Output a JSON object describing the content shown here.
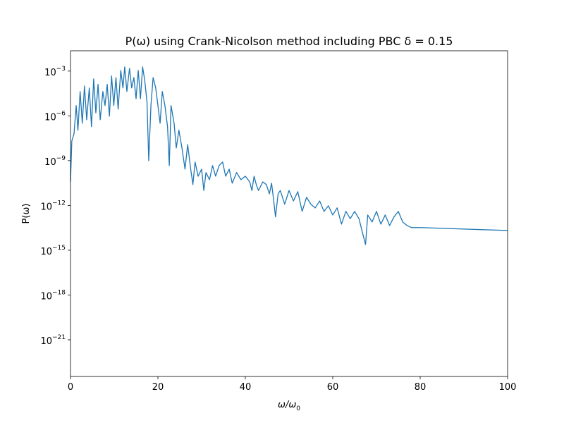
{
  "chart_data": {
    "type": "line",
    "title": "P(ω) using Crank-Nicolson method including PBC δ = 0.15",
    "x_label": {
      "text": "ω/ω",
      "subscript": "0"
    },
    "y_label": "P(ω)",
    "log_scale_y": true,
    "grid": false,
    "xlim": [
      0,
      100
    ],
    "ylim": [
      3.5e-24,
      0.023
    ],
    "xticks": [
      0,
      20,
      40,
      60,
      80,
      100
    ],
    "yticks": [
      {
        "value": 1e-21,
        "label": {
          "base": "10",
          "exponent": "−21"
        }
      },
      {
        "value": 1e-18,
        "label": {
          "base": "10",
          "exponent": "−18"
        }
      },
      {
        "value": 1e-15,
        "label": {
          "base": "10",
          "exponent": "−15"
        }
      },
      {
        "value": 1e-12,
        "label": {
          "base": "10",
          "exponent": "−12"
        }
      },
      {
        "value": 1e-09,
        "label": {
          "base": "10",
          "exponent": "−9"
        }
      },
      {
        "value": 1e-06,
        "label": {
          "base": "10",
          "exponent": "−6"
        }
      },
      {
        "value": 0.001,
        "label": {
          "base": "10",
          "exponent": "−3"
        }
      }
    ],
    "x": [
      0,
      0.3,
      0.8,
      1.3,
      1.7,
      2.2,
      2.7,
      3.2,
      3.7,
      4.3,
      4.8,
      5.3,
      5.8,
      6.3,
      6.8,
      7.4,
      7.9,
      8.4,
      8.9,
      9.4,
      9.9,
      10.4,
      10.9,
      11.5,
      12,
      12.4,
      12.9,
      13.5,
      14,
      14.5,
      15,
      15.5,
      16,
      16.5,
      17,
      17.5,
      17.9,
      18.4,
      18.9,
      19.5,
      20,
      20.5,
      21,
      21.6,
      22.2,
      22.6,
      23,
      23.7,
      24.2,
      24.8,
      25.5,
      26.2,
      26.8,
      27.5,
      28,
      28.5,
      29.2,
      30,
      30.5,
      31,
      31.8,
      32.5,
      33.2,
      34,
      34.8,
      35.5,
      36.3,
      37,
      38,
      39,
      40,
      41,
      41.5,
      42,
      42.5,
      43,
      44,
      44.8,
      45.5,
      46,
      46.5,
      46.9,
      47.5,
      48,
      49,
      50,
      51,
      52,
      53,
      54,
      55,
      56,
      57,
      58,
      59,
      60,
      61,
      62,
      63,
      64,
      65,
      66,
      66.8,
      67.5,
      68,
      69,
      70,
      71,
      72,
      73,
      74,
      75,
      76,
      77,
      78,
      80,
      100
    ],
    "series": [
      {
        "name": "P",
        "color": "#1f77b4",
        "values": [
          4e-11,
          2.1e-08,
          6.3e-08,
          4.9e-06,
          1.1e-07,
          4.3e-05,
          3.2e-07,
          0.0001,
          5.5e-07,
          7.4e-05,
          1.9e-07,
          0.0003,
          1.6e-06,
          0.00013,
          5.5e-07,
          4.3e-05,
          4.9e-06,
          0.00013,
          9.5e-07,
          0.00047,
          4.9e-06,
          0.00037,
          2.8e-06,
          0.0011,
          7.4e-05,
          0.0019,
          4.3e-05,
          0.0015,
          7.4e-05,
          0.00037,
          1.4e-05,
          0.0011,
          1.4e-05,
          0.0019,
          0.00022,
          8.3e-06,
          1e-09,
          4.9e-06,
          0.00037,
          7.4e-05,
          4.9e-06,
          3.2e-07,
          4.3e-05,
          4.9e-06,
          1.9e-07,
          4.7e-10,
          4.9e-06,
          3.2e-07,
          7.1e-09,
          1.1e-07,
          7.1e-09,
          2.7e-10,
          1.2e-08,
          2.7e-10,
          2.5e-11,
          8.1e-10,
          9.1e-11,
          2.7e-10,
          1e-11,
          1.6e-10,
          5.3e-11,
          4.7e-10,
          9.1e-11,
          4.7e-10,
          8.1e-10,
          9.1e-11,
          2.7e-10,
          3.1e-11,
          1.6e-10,
          5.3e-11,
          9.1e-11,
          3.8e-11,
          1e-11,
          9.1e-11,
          2.5e-11,
          1e-11,
          3.8e-11,
          2.5e-11,
          6e-12,
          3.1e-11,
          2e-12,
          1.7e-13,
          6e-12,
          1e-11,
          1.2e-12,
          1e-11,
          2e-12,
          8.4e-12,
          4e-13,
          3.5e-12,
          1.2e-12,
          6.9e-13,
          2e-12,
          4e-13,
          9.5e-13,
          2.3e-13,
          6.9e-13,
          5.6e-14,
          4e-13,
          1.3e-13,
          4e-13,
          1.3e-13,
          1.5e-14,
          2.4e-15,
          2.3e-13,
          7.8e-14,
          4e-13,
          5.6e-14,
          2.3e-13,
          4.5e-14,
          1.7e-13,
          4e-13,
          7.8e-14,
          4.5e-14,
          3.3e-14,
          3.3e-14,
          2.1e-14
        ]
      }
    ]
  }
}
